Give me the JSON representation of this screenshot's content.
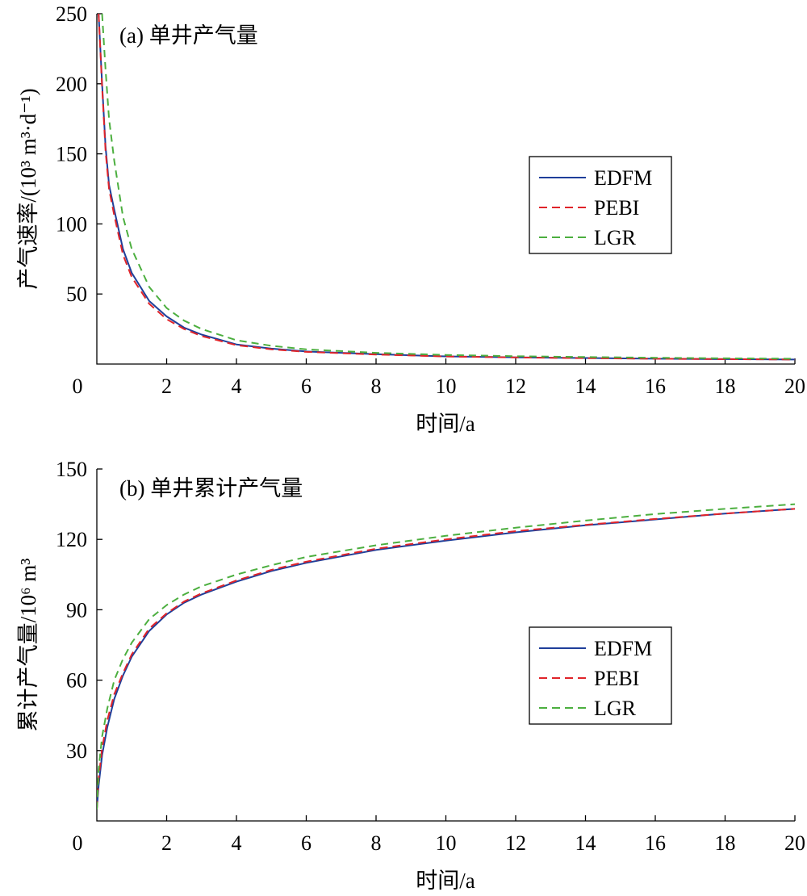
{
  "chart_data": [
    {
      "type": "line",
      "title": "(a) 单井产气量",
      "xlabel": "时间/a",
      "ylabel": "产气速率/(10³ m³·d⁻¹)",
      "xlim": [
        0,
        20
      ],
      "ylim": [
        0,
        250
      ],
      "x_ticks": [
        0,
        2,
        4,
        6,
        8,
        10,
        12,
        14,
        16,
        18,
        20
      ],
      "y_ticks": [
        50,
        100,
        150,
        200,
        250
      ],
      "grid": false,
      "legend_position": "right",
      "series": [
        {
          "name": "EDFM",
          "color": "#1f3f9a",
          "dash": "solid",
          "x": [
            0.05,
            0.15,
            0.25,
            0.35,
            0.5,
            0.75,
            1,
            1.5,
            2,
            2.5,
            3,
            4,
            5,
            6,
            8,
            10,
            12,
            14,
            16,
            18,
            20
          ],
          "y": [
            250,
            200,
            155,
            128,
            110,
            82,
            65,
            45,
            34,
            26,
            21,
            14,
            11,
            9,
            7,
            5.5,
            4.8,
            4.3,
            3.8,
            3.5,
            3.2
          ]
        },
        {
          "name": "PEBI",
          "color": "#e0242a",
          "dash": "dashed",
          "x": [
            0.05,
            0.15,
            0.25,
            0.35,
            0.5,
            0.75,
            1,
            1.5,
            2,
            2.5,
            3,
            4,
            5,
            6,
            8,
            10,
            12,
            14,
            16,
            18,
            20
          ],
          "y": [
            250,
            198,
            152,
            125,
            106,
            78,
            62,
            43,
            32,
            25,
            20,
            13.5,
            10.5,
            8.7,
            6.8,
            5.4,
            4.7,
            4.2,
            3.8,
            3.5,
            3.2
          ]
        },
        {
          "name": "LGR",
          "color": "#4caf3f",
          "dash": "dashed",
          "x": [
            0.15,
            0.25,
            0.35,
            0.5,
            0.75,
            1,
            1.5,
            2,
            2.5,
            3,
            4,
            5,
            6,
            8,
            10,
            12,
            14,
            16,
            18,
            20
          ],
          "y": [
            250,
            210,
            175,
            145,
            105,
            82,
            55,
            40,
            31,
            25,
            17,
            13,
            10.5,
            8,
            6.5,
            5.6,
            5,
            4.5,
            4.1,
            3.8
          ]
        }
      ]
    },
    {
      "type": "line",
      "title": "(b) 单井累计产气量",
      "xlabel": "时间/a",
      "ylabel": "累计产气量/10⁶ m³",
      "xlim": [
        0,
        20
      ],
      "ylim": [
        0,
        150
      ],
      "x_ticks": [
        0,
        2,
        4,
        6,
        8,
        10,
        12,
        14,
        16,
        18,
        20
      ],
      "y_ticks": [
        30,
        60,
        90,
        120,
        150
      ],
      "grid": false,
      "legend_position": "right",
      "series": [
        {
          "name": "EDFM",
          "color": "#1f3f9a",
          "dash": "solid",
          "x": [
            0,
            0.05,
            0.15,
            0.3,
            0.5,
            0.75,
            1,
            1.5,
            2,
            2.5,
            3,
            4,
            5,
            6,
            8,
            10,
            12,
            14,
            16,
            18,
            20
          ],
          "y": [
            5,
            15,
            28,
            40,
            52,
            62,
            70,
            81,
            88,
            93,
            96.5,
            102,
            106.5,
            110,
            115.5,
            119.5,
            123,
            126,
            128.5,
            131,
            133
          ]
        },
        {
          "name": "PEBI",
          "color": "#e0242a",
          "dash": "dashed",
          "x": [
            0,
            0.05,
            0.15,
            0.3,
            0.5,
            0.75,
            1,
            1.5,
            2,
            2.5,
            3,
            4,
            5,
            6,
            8,
            10,
            12,
            14,
            16,
            18,
            20
          ],
          "y": [
            5,
            18,
            31,
            43,
            54,
            63,
            71,
            82,
            88.5,
            93.5,
            97,
            102.5,
            107,
            110.5,
            116,
            120,
            123.5,
            126.2,
            128.7,
            131,
            133
          ]
        },
        {
          "name": "LGR",
          "color": "#4caf3f",
          "dash": "dashed",
          "x": [
            0,
            0.05,
            0.15,
            0.3,
            0.5,
            0.75,
            1,
            1.5,
            2,
            2.5,
            3,
            4,
            5,
            6,
            8,
            10,
            12,
            14,
            16,
            18,
            20
          ],
          "y": [
            5,
            22,
            36,
            48,
            60,
            69,
            76,
            86,
            92,
            96.5,
            100,
            105,
            109,
            112.5,
            117.5,
            121.5,
            125,
            128,
            130.8,
            133,
            135
          ]
        }
      ]
    }
  ]
}
